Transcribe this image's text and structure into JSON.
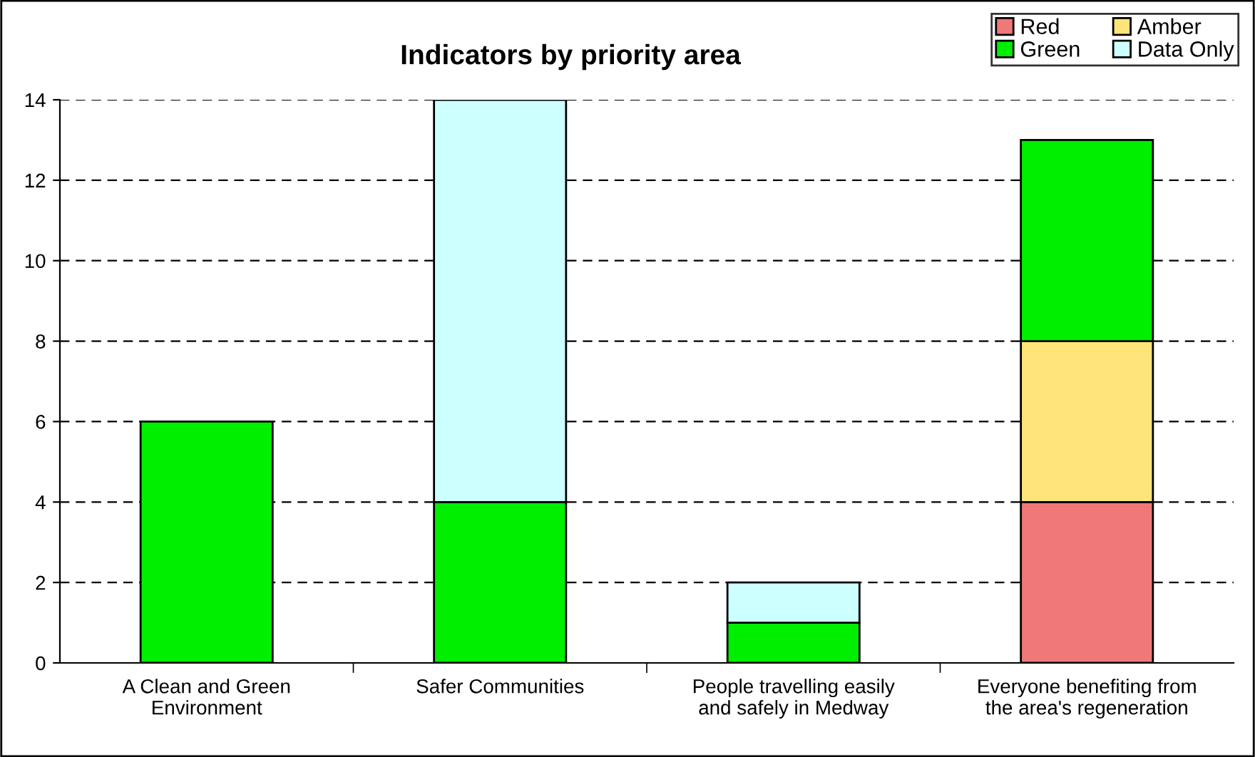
{
  "chart_data": {
    "type": "bar",
    "title": "Indicators by priority area",
    "categories": [
      "A Clean and Green\nEnvironment",
      "Safer Communities",
      "People travelling easily\nand safely in Medway",
      "Everyone benefiting from\nthe area's regeneration"
    ],
    "stacked": true,
    "series": [
      {
        "name": "Red",
        "color": "#f07878",
        "values": [
          null,
          null,
          null,
          4
        ]
      },
      {
        "name": "Amber",
        "color": "#ffe47a",
        "values": [
          null,
          null,
          null,
          4
        ]
      },
      {
        "name": "Green",
        "color": "#00ee00",
        "values": [
          6,
          4,
          1,
          5
        ]
      },
      {
        "name": "Data Only",
        "color": "#ccffff",
        "values": [
          null,
          10,
          1,
          null
        ]
      }
    ],
    "ylim": [
      0,
      14
    ],
    "yticks": [
      0,
      2,
      4,
      6,
      8,
      10,
      12,
      14
    ],
    "grid": "y",
    "legend": "top right"
  }
}
